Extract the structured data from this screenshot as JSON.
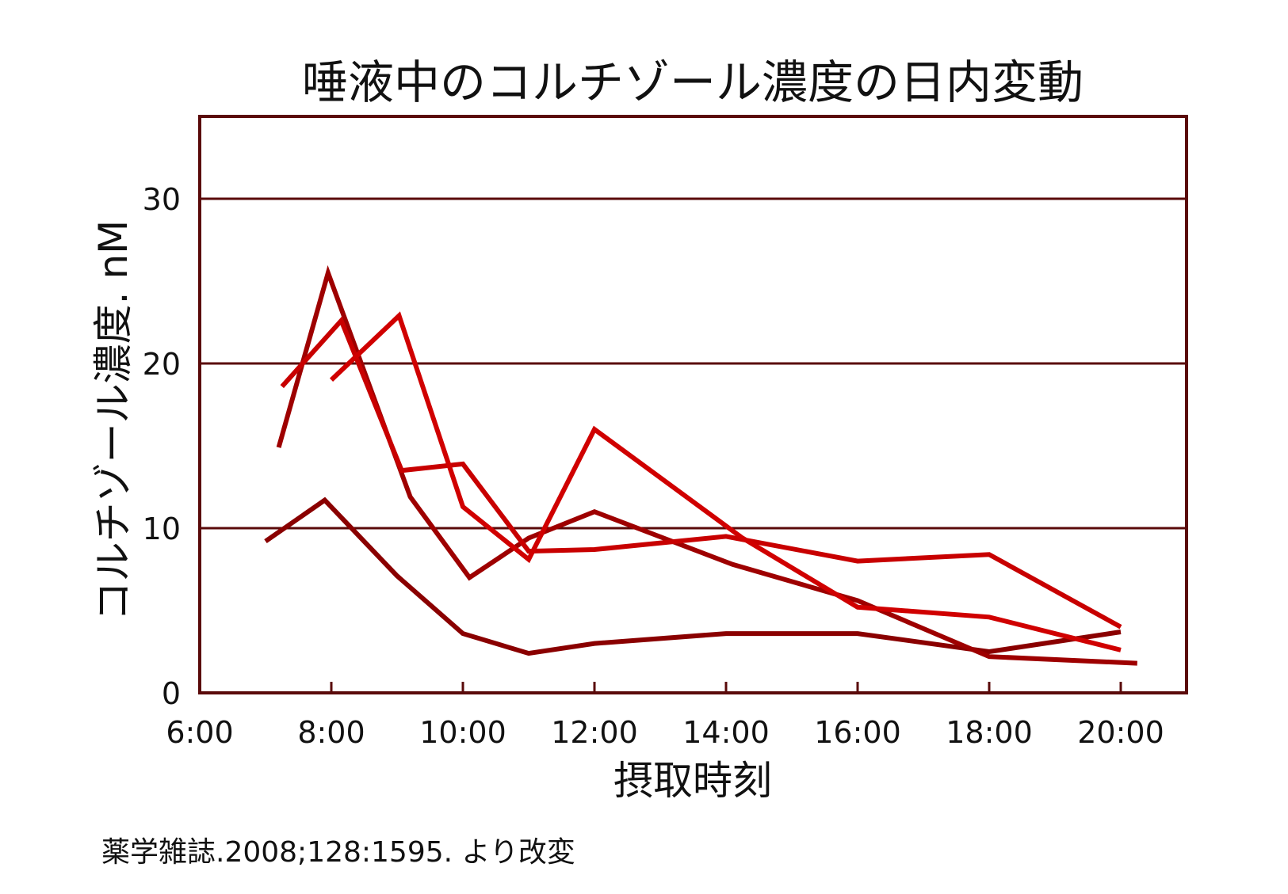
{
  "chart_data": {
    "type": "line",
    "title": "唾液中のコルチゾール濃度の日内変動",
    "xlabel": "摂取時刻",
    "ylabel": "コルチゾール濃度. nM",
    "xlim": [
      6,
      21
    ],
    "ylim": [
      0,
      35
    ],
    "x_ticks": [
      {
        "value": 6,
        "label": "6:00"
      },
      {
        "value": 8,
        "label": "8:00"
      },
      {
        "value": 10,
        "label": "10:00"
      },
      {
        "value": 12,
        "label": "12:00"
      },
      {
        "value": 14,
        "label": "14:00"
      },
      {
        "value": 16,
        "label": "16:00"
      },
      {
        "value": 18,
        "label": "18:00"
      },
      {
        "value": 20,
        "label": "20:00"
      }
    ],
    "y_ticks": [
      {
        "value": 0,
        "label": "0"
      },
      {
        "value": 10,
        "label": "10"
      },
      {
        "value": 20,
        "label": "20"
      },
      {
        "value": 30,
        "label": "30"
      }
    ],
    "grid": "horizontal",
    "series": [
      {
        "color": "#8a0000",
        "x": [
          7.0,
          7.9,
          9.0,
          10.0,
          11.0,
          12.0,
          14.0,
          16.0,
          18.0,
          20.0
        ],
        "y": [
          9.2,
          11.7,
          7.1,
          3.6,
          2.4,
          3.0,
          3.6,
          3.6,
          2.5,
          3.7
        ]
      },
      {
        "color": "#9e0000",
        "x": [
          7.2,
          7.95,
          9.2,
          10.1,
          11.0,
          12.0,
          14.1,
          16.0,
          18.0,
          20.25
        ],
        "y": [
          14.9,
          25.5,
          11.9,
          7.0,
          9.4,
          11.0,
          7.8,
          5.6,
          2.2,
          1.8
        ]
      },
      {
        "color": "#c80000",
        "x": [
          7.25,
          8.15,
          9.07,
          10.0,
          11.0,
          12.0,
          14.0,
          16.0,
          18.0,
          20.0
        ],
        "y": [
          18.6,
          22.6,
          13.5,
          13.9,
          8.6,
          8.7,
          9.5,
          8.0,
          8.4,
          4.0
        ]
      },
      {
        "color": "#d00000",
        "x": [
          8.0,
          9.03,
          10.0,
          11.0,
          12.0,
          14.25,
          16.0,
          18.0,
          20.0
        ],
        "y": [
          19.0,
          22.9,
          11.3,
          8.1,
          16.0,
          9.4,
          5.2,
          4.6,
          2.6
        ]
      }
    ],
    "frame_color": "#5a0a0a"
  },
  "source_note": "薬学雑誌.2008;128:1595. より改変"
}
